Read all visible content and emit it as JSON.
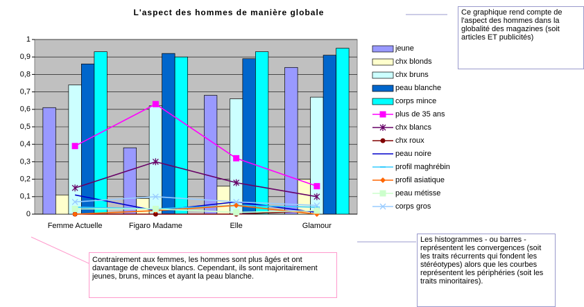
{
  "chart_data": {
    "type": "bar",
    "title": "L'aspect des hommes de manière globale",
    "categories": [
      "Femme Actuelle",
      "Figaro Madame",
      "Elle",
      "Glamour"
    ],
    "ylim": [
      0,
      1
    ],
    "yticks": [
      0,
      {
        "value": 0.1,
        "label": "0,1"
      },
      {
        "value": 0.2,
        "label": "0,2"
      },
      {
        "value": 0.3,
        "label": "0,3"
      },
      {
        "value": 0.4,
        "label": "0,4"
      },
      {
        "value": 0.5,
        "label": "0,5"
      },
      {
        "value": 0.6,
        "label": "0,6"
      },
      {
        "value": 0.7,
        "label": "0,7"
      },
      {
        "value": 0.8,
        "label": "0,8"
      },
      {
        "value": 0.9,
        "label": "0,9"
      },
      1
    ],
    "legend": "right",
    "series": [
      {
        "name": "jeune",
        "type": "bar",
        "color": "#9999ff",
        "values": [
          0.61,
          0.38,
          0.68,
          0.84
        ]
      },
      {
        "name": "chx blonds",
        "type": "bar",
        "color": "#ffffcc",
        "values": [
          0.11,
          0.09,
          0.16,
          0.2
        ]
      },
      {
        "name": "chx bruns",
        "type": "bar",
        "color": "#ccffff",
        "values": [
          0.74,
          0.62,
          0.66,
          0.67
        ]
      },
      {
        "name": "peau blanche",
        "type": "bar",
        "color": "#0066cc",
        "values": [
          0.86,
          0.92,
          0.89,
          0.91
        ]
      },
      {
        "name": "corps mince",
        "type": "bar",
        "color": "#00ffff",
        "values": [
          0.93,
          0.9,
          0.93,
          0.95
        ]
      },
      {
        "name": "plus de 35 ans",
        "type": "line",
        "marker": "square",
        "color": "#ff00ff",
        "values": [
          0.39,
          0.63,
          0.32,
          0.16
        ]
      },
      {
        "name": "chx blancs",
        "type": "line",
        "marker": "star",
        "color": "#660066",
        "values": [
          0.15,
          0.3,
          0.18,
          0.1
        ]
      },
      {
        "name": "chx roux",
        "type": "line",
        "marker": "circle",
        "color": "#800000",
        "values": [
          0,
          0,
          0,
          0.02
        ]
      },
      {
        "name": "peau noire",
        "type": "line",
        "marker": "none",
        "color": "#0000cc",
        "values": [
          0.11,
          0.02,
          0.07,
          0.01
        ]
      },
      {
        "name": "profil maghrébin",
        "type": "line",
        "marker": "dash",
        "color": "#33ccff",
        "values": [
          0.04,
          0.03,
          0.05,
          0.04
        ]
      },
      {
        "name": "profil asiatique",
        "type": "line",
        "marker": "diamond",
        "color": "#ff6600",
        "values": [
          0,
          0.02,
          0.05,
          0
        ]
      },
      {
        "name": "peau métisse",
        "type": "line",
        "marker": "square",
        "color": "#ccffcc",
        "values": [
          0.03,
          0.03,
          0.01,
          0.02
        ]
      },
      {
        "name": "corps gros",
        "type": "line",
        "marker": "x",
        "color": "#99ccff",
        "values": [
          0.07,
          0.1,
          0.07,
          0.05
        ]
      }
    ]
  },
  "annotations": [
    "Ce graphique rend compte de l'aspect des hommes dans la globalité des magazines (soit articles ET publicités)",
    "Contrairement aux femmes, les hommes sont plus âgés et ont davantage de cheveux blancs. Cependant, ils sont majoritairement jeunes, bruns, minces et ayant la peau blanche.",
    "Les histogrammes - ou barres - représentent les convergences (soit les traits récurrents qui fondent les stéréotypes) alors que les courbes représentent les périphéries (soit les traits minoritaires)."
  ]
}
